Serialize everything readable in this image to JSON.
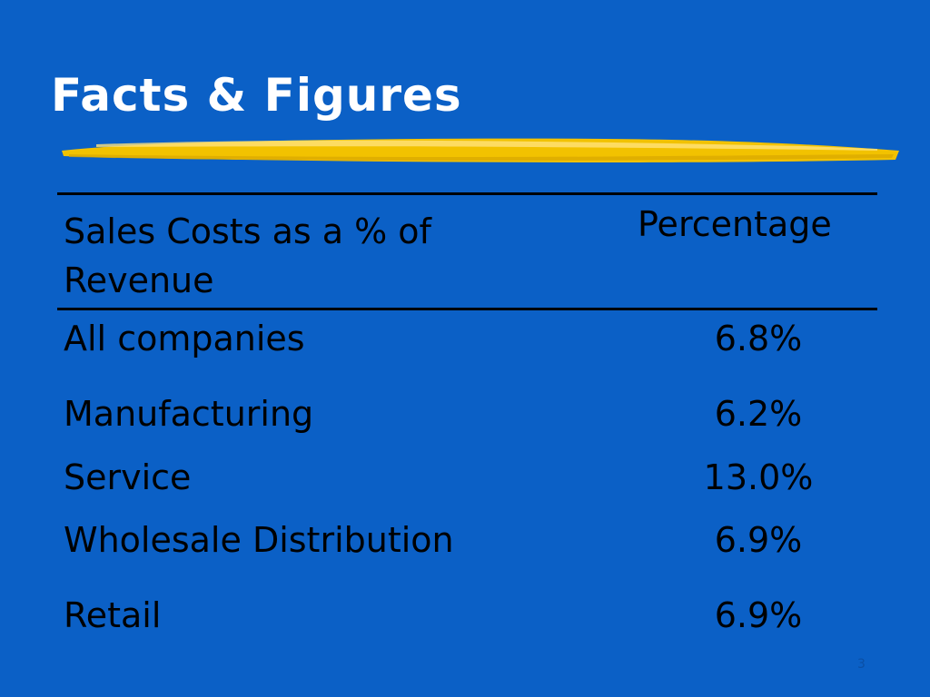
{
  "slide": {
    "title": "Facts & Figures",
    "page_number": "3",
    "accent_color": "#f2c200",
    "background_color": "#0b60c6"
  },
  "table": {
    "header": {
      "label": "Sales Costs as a % of Revenue",
      "value": "Percentage"
    },
    "rows": [
      {
        "label": "All companies",
        "value": "6.8%"
      },
      {
        "label": "Manufacturing",
        "value": "6.2%"
      },
      {
        "label": "Service",
        "value": "13.0%"
      },
      {
        "label": "Wholesale Distribution",
        "value": "6.9%"
      },
      {
        "label": "Retail",
        "value": "6.9%"
      }
    ]
  }
}
